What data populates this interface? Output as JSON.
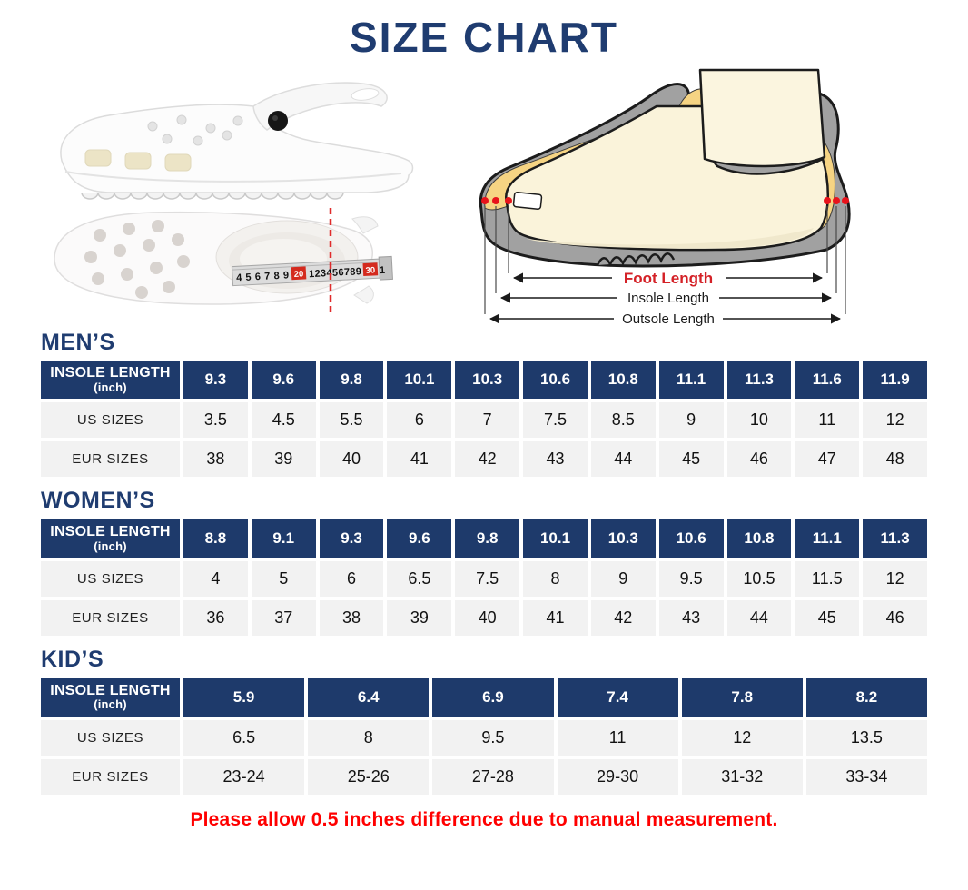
{
  "page_title": "SIZE CHART",
  "disclaimer": "Please allow 0.5 inches difference due to manual measurement.",
  "colors": {
    "navy": "#1e3a6b",
    "title_navy": "#1f3c70",
    "disclaimer_red": "#ff0000",
    "diagram_red": "#d42127",
    "dot_red": "#e8131b",
    "cell_gray": "#f2f2f2",
    "shoe_gray": "#a1a1a1",
    "foot_cream": "#faf3da",
    "insole_yellow": "#f6d483"
  },
  "diagram": {
    "foot_length_label": "Foot Length",
    "insole_length_label": "Insole Length",
    "outsole_length_label": "Outsole Length"
  },
  "tape": {
    "seg1": "4 5 6 7 8 9",
    "mark1": "20",
    "seg2": "1 2 3 4 5 6 7 8 9",
    "mark2": "30",
    "seg3": "1"
  },
  "chart_data": [
    {
      "type": "table",
      "title": "MEN’S",
      "row_header_main": "INSOLE LENGTH",
      "row_header_sub": "(inch)",
      "row_labels": [
        "US SIZES",
        "EUR SIZES"
      ],
      "insole_length_inch": [
        "9.3",
        "9.6",
        "9.8",
        "10.1",
        "10.3",
        "10.6",
        "10.8",
        "11.1",
        "11.3",
        "11.6",
        "11.9"
      ],
      "us_sizes": [
        "3.5",
        "4.5",
        "5.5",
        "6",
        "7",
        "7.5",
        "8.5",
        "9",
        "10",
        "11",
        "12"
      ],
      "eur_sizes": [
        "38",
        "39",
        "40",
        "41",
        "42",
        "43",
        "44",
        "45",
        "46",
        "47",
        "48"
      ]
    },
    {
      "type": "table",
      "title": "WOMEN’S",
      "row_header_main": "INSOLE LENGTH",
      "row_header_sub": "(inch)",
      "row_labels": [
        "US SIZES",
        "EUR SIZES"
      ],
      "insole_length_inch": [
        "8.8",
        "9.1",
        "9.3",
        "9.6",
        "9.8",
        "10.1",
        "10.3",
        "10.6",
        "10.8",
        "11.1",
        "11.3"
      ],
      "us_sizes": [
        "4",
        "5",
        "6",
        "6.5",
        "7.5",
        "8",
        "9",
        "9.5",
        "10.5",
        "11.5",
        "12"
      ],
      "eur_sizes": [
        "36",
        "37",
        "38",
        "39",
        "40",
        "41",
        "42",
        "43",
        "44",
        "45",
        "46"
      ]
    },
    {
      "type": "table",
      "title": "KID’S",
      "row_header_main": "INSOLE LENGTH",
      "row_header_sub": "(inch)",
      "row_labels": [
        "US SIZES",
        "EUR SIZES"
      ],
      "insole_length_inch": [
        "5.9",
        "6.4",
        "6.9",
        "7.4",
        "7.8",
        "8.2"
      ],
      "us_sizes": [
        "6.5",
        "8",
        "9.5",
        "11",
        "12",
        "13.5"
      ],
      "eur_sizes": [
        "23-24",
        "25-26",
        "27-28",
        "29-30",
        "31-32",
        "33-34"
      ]
    }
  ]
}
